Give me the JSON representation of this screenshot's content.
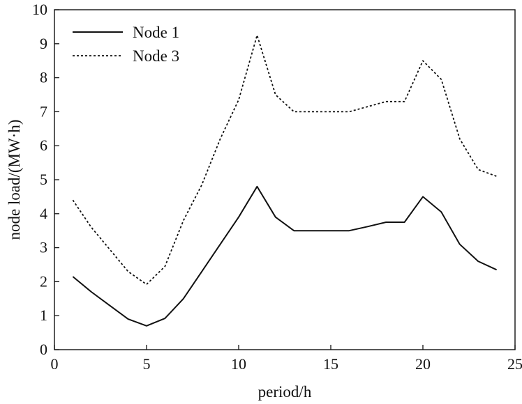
{
  "chart_data": {
    "type": "line",
    "xlabel": "period/h",
    "ylabel": "node load/(MW·h)",
    "xlim": [
      0,
      25
    ],
    "ylim": [
      0,
      10
    ],
    "xticks": [
      "0",
      "5",
      "10",
      "15",
      "20",
      "25"
    ],
    "yticks": [
      "0",
      "1",
      "2",
      "3",
      "4",
      "5",
      "6",
      "7",
      "8",
      "9",
      "10"
    ],
    "grid": false,
    "legend_position": "top-left",
    "series": [
      {
        "name": "Node 1",
        "style": "solid",
        "color": "#111111",
        "x": [
          1,
          2,
          3,
          4,
          5,
          6,
          7,
          8,
          9,
          10,
          11,
          12,
          13,
          14,
          15,
          16,
          17,
          18,
          19,
          20,
          21,
          22,
          23,
          24
        ],
        "values": [
          2.15,
          1.7,
          1.3,
          0.9,
          0.7,
          0.92,
          1.5,
          2.3,
          3.1,
          3.9,
          4.8,
          3.9,
          3.5,
          3.5,
          3.5,
          3.5,
          3.62,
          3.75,
          3.75,
          4.5,
          4.05,
          3.1,
          2.6,
          2.35
        ]
      },
      {
        "name": "Node 3",
        "style": "dotted",
        "color": "#111111",
        "x": [
          1,
          2,
          3,
          4,
          5,
          6,
          7,
          8,
          9,
          10,
          11,
          12,
          13,
          14,
          15,
          16,
          17,
          18,
          19,
          20,
          21,
          22,
          23,
          24
        ],
        "values": [
          4.4,
          3.6,
          2.95,
          2.3,
          1.92,
          2.45,
          3.8,
          4.85,
          6.2,
          7.35,
          9.25,
          7.5,
          7.0,
          7.0,
          7.0,
          7.0,
          7.15,
          7.3,
          7.3,
          8.5,
          7.95,
          6.2,
          5.3,
          5.1
        ]
      }
    ]
  }
}
